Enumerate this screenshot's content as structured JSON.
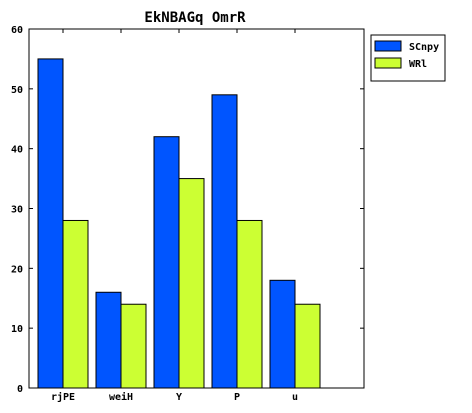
{
  "chart_data": {
    "type": "bar",
    "title": "EkNBAGq OmrR",
    "xlabel": "",
    "ylabel": "",
    "categories": [
      "rjPE",
      "weiH",
      "Y",
      "P",
      "u"
    ],
    "series": [
      {
        "name": "SCnpy",
        "color": "#0055ff",
        "values": [
          55,
          16,
          42,
          49,
          18
        ]
      },
      {
        "name": "WRl",
        "color": "#ccff33",
        "values": [
          28,
          14,
          35,
          28,
          14
        ]
      }
    ],
    "ylim": [
      0,
      60
    ],
    "yticks": [
      0,
      10,
      20,
      30,
      40,
      50,
      60
    ],
    "grid": false,
    "legend_position": "outside-top-right"
  }
}
